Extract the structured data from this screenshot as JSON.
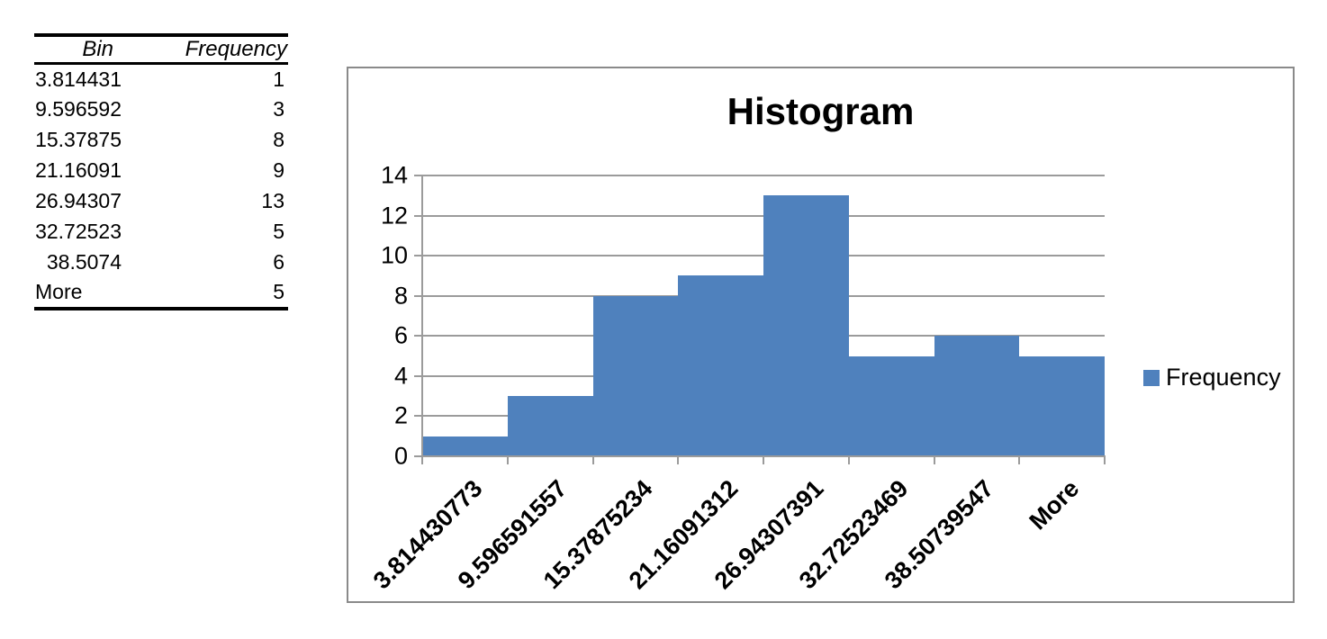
{
  "table": {
    "headers": {
      "bin": "Bin",
      "frequency": "Frequency"
    },
    "rows": [
      {
        "bin": "3.814431",
        "frequency": "1"
      },
      {
        "bin": "9.596592",
        "frequency": "3"
      },
      {
        "bin": "15.37875",
        "frequency": "8"
      },
      {
        "bin": "21.16091",
        "frequency": "9"
      },
      {
        "bin": "26.94307",
        "frequency": "13"
      },
      {
        "bin": "32.72523",
        "frequency": "5"
      },
      {
        "bin": "38.5074",
        "frequency": "6"
      },
      {
        "bin": "More",
        "frequency": "5"
      }
    ]
  },
  "chart_data": {
    "type": "bar",
    "title": "Histogram",
    "categories": [
      "3.814430773",
      "9.596591557",
      "15.37875234",
      "21.16091312",
      "26.94307391",
      "32.72523469",
      "38.50739547",
      "More"
    ],
    "series": [
      {
        "name": "Frequency",
        "values": [
          1,
          3,
          8,
          9,
          13,
          5,
          6,
          5
        ]
      }
    ],
    "xlabel": "",
    "ylabel": "",
    "ylim": [
      0,
      14
    ],
    "ytick_step": 2,
    "yticks": [
      "0",
      "2",
      "4",
      "6",
      "8",
      "10",
      "12",
      "14"
    ],
    "grid": true,
    "gap_width": 0,
    "x_label_rotation_deg": -45,
    "legend_position": "right",
    "colors": {
      "bar": "#4F81BD",
      "gridline": "#9B9B9B",
      "axis": "#9B9B9B",
      "chart_border": "#8A8A8A",
      "text": "#000000"
    }
  }
}
